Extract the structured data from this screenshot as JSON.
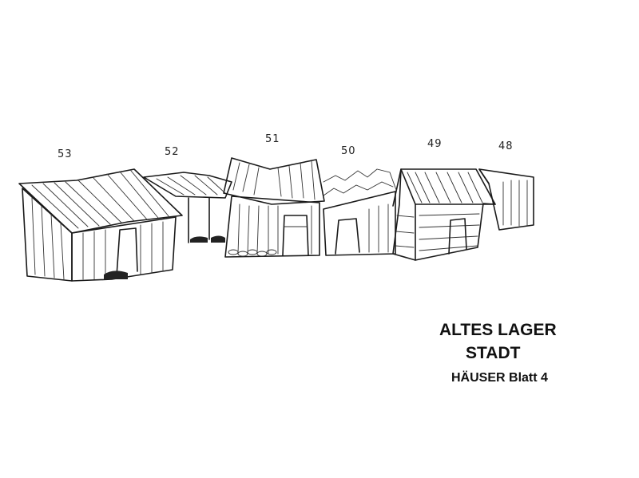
{
  "house_numbers": [
    "53",
    "52",
    "51",
    "50",
    "49",
    "48"
  ],
  "caption": {
    "line1": "ALTES LAGER",
    "line2": "STADT",
    "line3": "HÄUSER Blatt  4"
  }
}
